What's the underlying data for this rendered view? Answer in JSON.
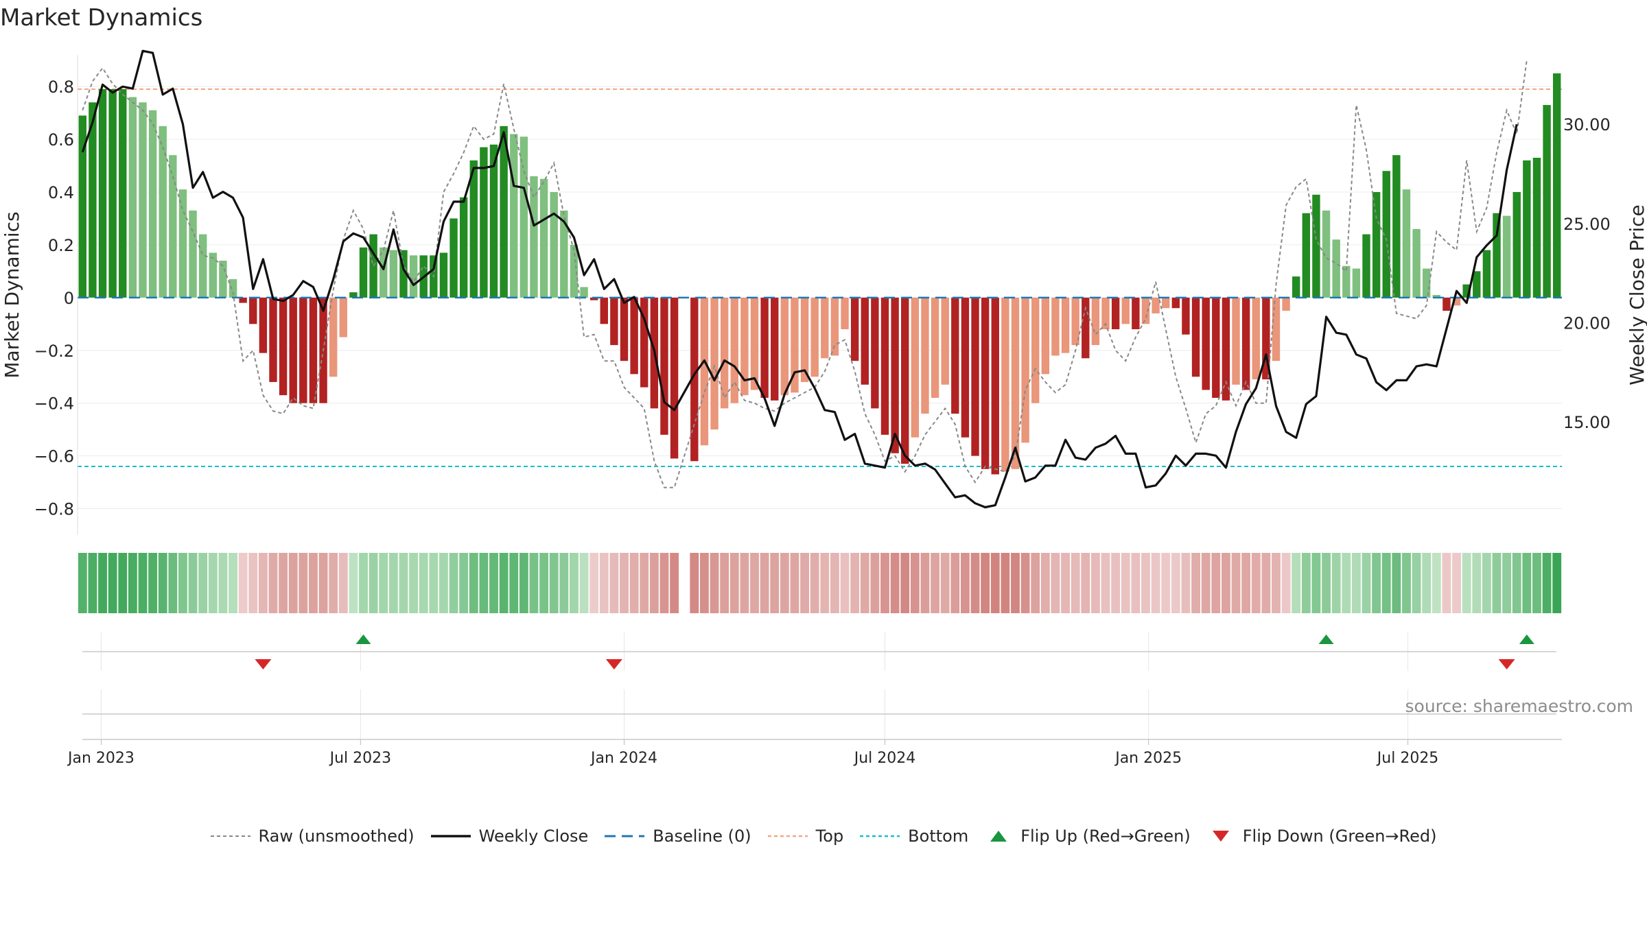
{
  "chart_data": {
    "type": "bar",
    "title": "Market Dynamics",
    "ylabel": "Market Dynamics",
    "y2label": "Weekly Close Price",
    "ylim": [
      -0.9,
      0.92
    ],
    "y2lim": [
      9.3,
      33.5
    ],
    "yticks": [
      "0.8",
      "0.6",
      "0.4",
      "0.2",
      "0",
      "−0.2",
      "−0.4",
      "−0.6",
      "−0.8"
    ],
    "y2ticks": [
      "30.00",
      "25.00",
      "20.00",
      "15.00"
    ],
    "x_tick_labels": [
      "Jan 2023",
      "Jul 2023",
      "Jan 2024",
      "Jul 2024",
      "Jan 2025",
      "Jul 2025"
    ],
    "x_tick_dates": [
      "2023-01-01",
      "2023-07-01",
      "2024-01-01",
      "2024-07-01",
      "2025-01-01",
      "2025-07-01"
    ],
    "start_date": "2022-12-19",
    "frequency": "weekly",
    "top_level": 0.79,
    "bottom_level": -0.64,
    "baseline": 0,
    "values": [
      0.69,
      0.74,
      0.79,
      0.79,
      0.79,
      0.76,
      0.74,
      0.71,
      0.65,
      0.54,
      0.41,
      0.33,
      0.24,
      0.17,
      0.14,
      0.07,
      -0.02,
      -0.1,
      -0.21,
      -0.32,
      -0.37,
      -0.4,
      -0.4,
      -0.4,
      -0.4,
      -0.3,
      -0.15,
      0.02,
      0.19,
      0.24,
      0.19,
      0.18,
      0.18,
      0.16,
      0.16,
      0.16,
      0.17,
      0.3,
      0.38,
      0.52,
      0.57,
      0.58,
      0.65,
      0.62,
      0.61,
      0.46,
      0.45,
      0.4,
      0.33,
      0.2,
      0.04,
      -0.01,
      -0.1,
      -0.18,
      -0.24,
      -0.29,
      -0.34,
      -0.42,
      -0.52,
      -0.61,
      null,
      -0.62,
      -0.56,
      -0.5,
      -0.42,
      -0.4,
      -0.37,
      -0.35,
      -0.38,
      -0.39,
      -0.37,
      -0.36,
      -0.32,
      -0.3,
      -0.23,
      -0.22,
      -0.12,
      -0.24,
      -0.33,
      -0.42,
      -0.52,
      -0.59,
      -0.63,
      -0.53,
      -0.44,
      -0.38,
      -0.33,
      -0.44,
      -0.53,
      -0.6,
      -0.65,
      -0.67,
      -0.66,
      -0.65,
      -0.55,
      -0.4,
      -0.29,
      -0.22,
      -0.21,
      -0.18,
      -0.23,
      -0.18,
      -0.12,
      -0.12,
      -0.1,
      -0.12,
      -0.1,
      -0.06,
      -0.04,
      -0.04,
      -0.14,
      -0.3,
      -0.35,
      -0.38,
      -0.39,
      -0.33,
      -0.35,
      -0.31,
      -0.31,
      -0.24,
      -0.05,
      0.08,
      0.32,
      0.39,
      0.33,
      0.22,
      0.12,
      0.11,
      0.24,
      0.4,
      0.48,
      0.54,
      0.41,
      0.26,
      0.11,
      0.01,
      -0.05,
      -0.03,
      0.05,
      0.1,
      0.18,
      0.32,
      0.31,
      0.4,
      0.52,
      0.53,
      0.73,
      0.85
    ],
    "raw": [
      0.71,
      0.82,
      0.87,
      0.81,
      0.77,
      0.74,
      0.71,
      0.66,
      0.57,
      0.46,
      0.33,
      0.25,
      0.16,
      0.15,
      0.12,
      0.02,
      -0.24,
      -0.2,
      -0.37,
      -0.43,
      -0.44,
      -0.38,
      -0.41,
      -0.42,
      -0.2,
      0.03,
      0.22,
      0.33,
      0.26,
      0.12,
      0.18,
      0.33,
      0.12,
      0.06,
      0.12,
      0.08,
      0.4,
      0.47,
      0.55,
      0.65,
      0.6,
      0.62,
      0.81,
      0.64,
      0.48,
      0.38,
      0.44,
      0.51,
      0.31,
      0.18,
      -0.15,
      -0.14,
      -0.24,
      -0.24,
      -0.34,
      -0.38,
      -0.42,
      -0.62,
      -0.72,
      -0.72,
      -0.6,
      -0.48,
      -0.36,
      -0.26,
      -0.38,
      -0.32,
      -0.39,
      -0.4,
      -0.42,
      -0.43,
      -0.4,
      -0.38,
      -0.36,
      -0.34,
      -0.28,
      -0.18,
      -0.16,
      -0.28,
      -0.44,
      -0.52,
      -0.62,
      -0.6,
      -0.66,
      -0.6,
      -0.52,
      -0.47,
      -0.42,
      -0.48,
      -0.64,
      -0.7,
      -0.64,
      -0.65,
      -0.66,
      -0.6,
      -0.35,
      -0.27,
      -0.32,
      -0.36,
      -0.33,
      -0.2,
      -0.04,
      -0.14,
      -0.1,
      -0.2,
      -0.24,
      -0.15,
      -0.08,
      0.06,
      -0.12,
      -0.3,
      -0.42,
      -0.55,
      -0.44,
      -0.41,
      -0.32,
      -0.41,
      -0.32,
      -0.4,
      -0.4,
      0.05,
      0.35,
      0.42,
      0.45,
      0.22,
      0.15,
      0.13,
      0.1,
      0.73,
      0.56,
      0.3,
      0.22,
      -0.06,
      -0.07,
      -0.08,
      -0.03,
      0.25,
      0.21,
      0.18,
      0.52,
      0.25,
      0.34,
      0.55,
      0.71,
      0.62,
      0.9
    ],
    "price": [
      28.6,
      30.1,
      32.0,
      31.6,
      31.9,
      31.8,
      33.7,
      33.6,
      31.5,
      31.8,
      30.0,
      26.8,
      27.6,
      26.3,
      26.6,
      26.3,
      25.3,
      21.7,
      23.2,
      21.2,
      21.1,
      21.4,
      22.1,
      21.8,
      20.6,
      22.2,
      24.1,
      24.5,
      24.3,
      23.5,
      22.7,
      24.7,
      22.7,
      21.9,
      22.3,
      22.7,
      25.1,
      26.1,
      26.1,
      27.8,
      27.8,
      27.9,
      29.6,
      26.9,
      26.8,
      24.9,
      25.2,
      25.5,
      25.1,
      24.3,
      22.4,
      23.2,
      21.7,
      22.2,
      21.0,
      21.3,
      20.2,
      18.6,
      16.0,
      15.6,
      16.5,
      17.4,
      18.1,
      17.1,
      18.1,
      17.8,
      17.1,
      17.2,
      16.2,
      14.8,
      16.4,
      17.5,
      17.6,
      16.7,
      15.6,
      15.5,
      14.1,
      14.4,
      12.9,
      12.8,
      12.7,
      14.4,
      13.3,
      12.8,
      12.9,
      12.6,
      11.9,
      11.2,
      11.3,
      10.9,
      10.7,
      10.8,
      12.2,
      13.7,
      12.0,
      12.2,
      12.8,
      12.8,
      14.1,
      13.2,
      13.1,
      13.7,
      13.9,
      14.3,
      13.4,
      13.4,
      11.7,
      11.8,
      12.4,
      13.3,
      12.8,
      13.4,
      13.4,
      13.3,
      12.7,
      14.5,
      15.9,
      16.7,
      18.4,
      15.8,
      14.5,
      14.2,
      15.9,
      16.3,
      20.3,
      19.5,
      19.4,
      18.4,
      18.2,
      17.0,
      16.6,
      17.1,
      17.1,
      17.8,
      17.9,
      17.8,
      19.7,
      21.6,
      21.0,
      23.3,
      23.9,
      24.4,
      27.7,
      30.0
    ],
    "flip_up_idx": [
      28,
      124,
      144
    ],
    "flip_down_idx": [
      18,
      53,
      142
    ],
    "legend": {
      "raw": "Raw (unsmoothed)",
      "close": "Weekly Close",
      "baseline": "Baseline (0)",
      "top": "Top",
      "bottom": "Bottom",
      "flip_up": "Flip Up (Red→Green)",
      "flip_down": "Flip Down (Green→Red)"
    },
    "source": "source: sharemaestro.com"
  },
  "colors": {
    "pos_strong": "#228b22",
    "pos_weak": "#7fbf7f",
    "neg_strong": "#b22222",
    "neg_weak": "#e9967a",
    "raw": "#888888",
    "close": "#111111",
    "baseline": "#1f77b4",
    "top": "#f4a582",
    "bottom": "#17becf",
    "flip_up": "#1a9641",
    "flip_down": "#d62728"
  }
}
